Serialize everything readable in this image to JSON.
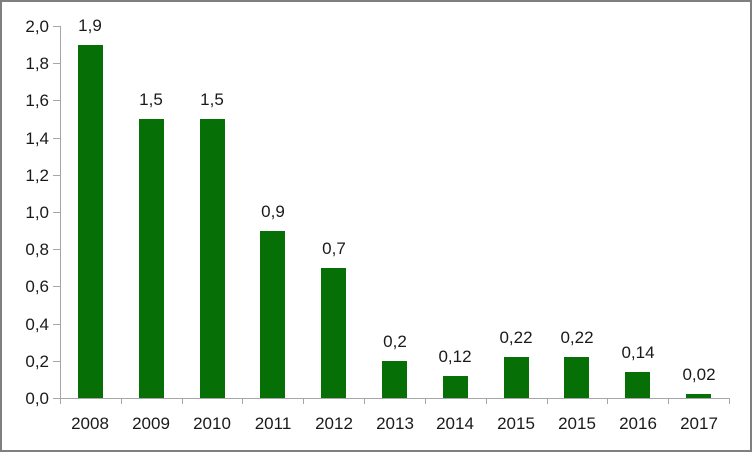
{
  "chart_data": {
    "type": "bar",
    "categories": [
      "2008",
      "2009",
      "2010",
      "2011",
      "2012",
      "2013",
      "2014",
      "2015",
      "2015",
      "2016",
      "2017"
    ],
    "values": [
      1.9,
      1.5,
      1.5,
      0.9,
      0.7,
      0.2,
      0.12,
      0.22,
      0.22,
      0.14,
      0.02
    ],
    "bar_labels": [
      "1,9",
      "1,5",
      "1,5",
      "0,9",
      "0,7",
      "0,2",
      "0,12",
      "0,22",
      "0,22",
      "0,14",
      "0,02"
    ],
    "title": "",
    "xlabel": "",
    "ylabel": "",
    "ylim": [
      0,
      2
    ],
    "y_tick_values": [
      0,
      0.2,
      0.4,
      0.6,
      0.8,
      1.0,
      1.2,
      1.4,
      1.6,
      1.8,
      2.0
    ],
    "y_tick_labels": [
      "0,0",
      "0,2",
      "0,4",
      "0,6",
      "0,8",
      "1,0",
      "1,2",
      "1,4",
      "1,6",
      "1,8",
      "2,0"
    ],
    "grid": false,
    "legend": "none",
    "bar_color": "#067006",
    "axis_color": "#a6a6a6",
    "text_color": "#1a1a1a",
    "frame_border_color": "#7f7f7f",
    "background_color": "#ffffff"
  }
}
